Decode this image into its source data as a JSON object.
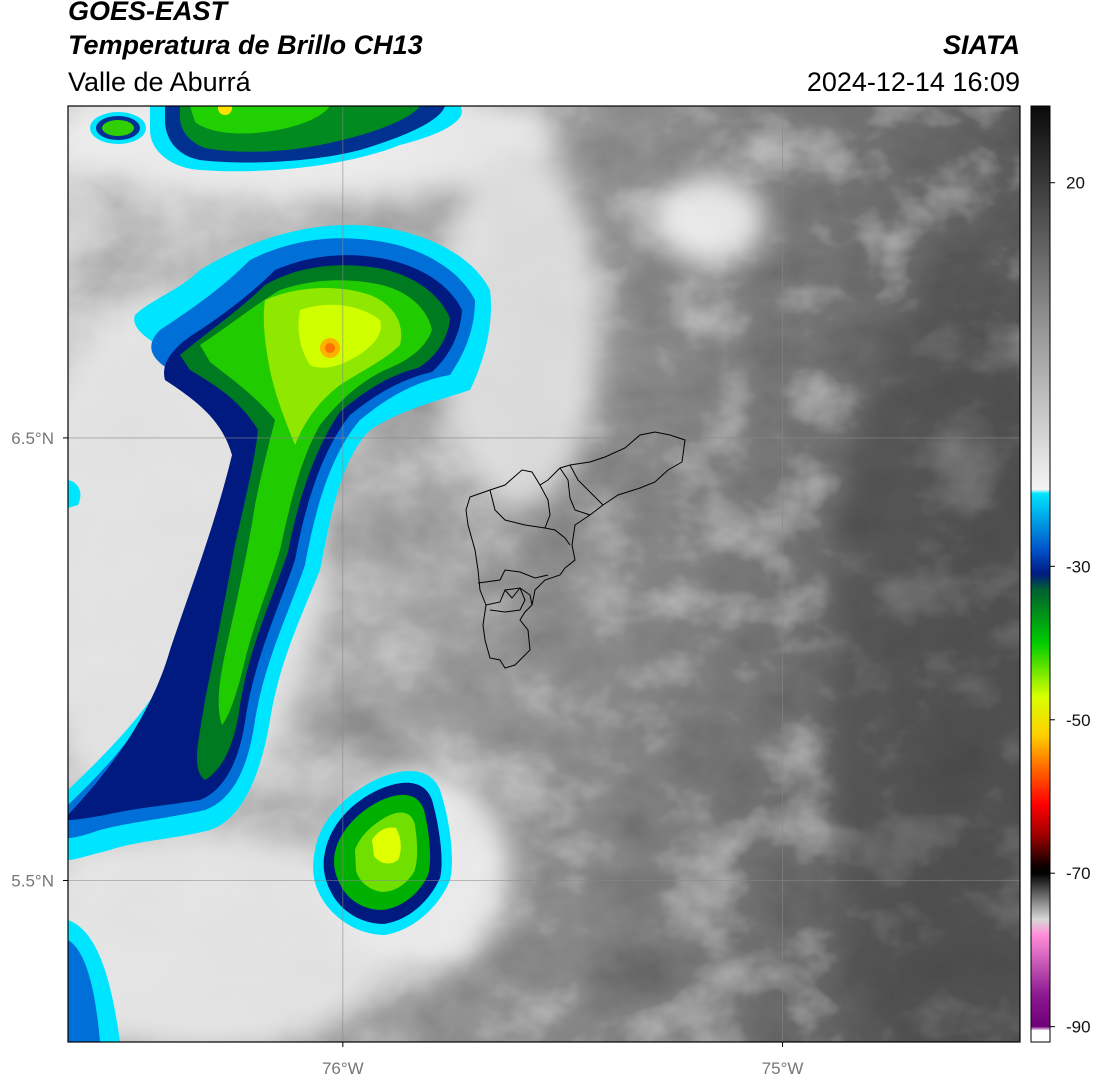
{
  "header": {
    "source": "GOES-EAST",
    "product": "Temperatura de Brillo CH13",
    "region": "Valle de Aburrá",
    "organization": "SIATA",
    "timestamp": "2024-12-14 16:09"
  },
  "map": {
    "lat_ticks": [
      {
        "value": 6.5,
        "label": "6.5°N"
      },
      {
        "value": 5.5,
        "label": "5.5°N"
      }
    ],
    "lon_ticks": [
      {
        "value": -76,
        "label": "76°W"
      },
      {
        "value": -75,
        "label": "75°W"
      }
    ],
    "lon_range": [
      -76.625,
      -74.46
    ],
    "lat_range": [
      5.135,
      7.25
    ],
    "grid": true,
    "boundary_color": "#000000"
  },
  "colorbar": {
    "range": [
      -92,
      30
    ],
    "tick_labels": [
      {
        "value": 20,
        "label": "20"
      },
      {
        "value": -30,
        "label": "-30"
      },
      {
        "value": -50,
        "label": "-50"
      },
      {
        "value": -70,
        "label": "-70"
      },
      {
        "value": -90,
        "label": "-90"
      }
    ],
    "stops": [
      {
        "value": 30,
        "color": "#0a0a0a"
      },
      {
        "value": 0,
        "color": "#9a9a9a"
      },
      {
        "value": -20,
        "color": "#f4f4f4"
      },
      {
        "value": -20.5,
        "color": "#00e5ff"
      },
      {
        "value": -28,
        "color": "#0050c8"
      },
      {
        "value": -31,
        "color": "#001a80"
      },
      {
        "value": -33,
        "color": "#006030"
      },
      {
        "value": -40,
        "color": "#00cc00"
      },
      {
        "value": -47,
        "color": "#d8ff00"
      },
      {
        "value": -52,
        "color": "#ffd000"
      },
      {
        "value": -56,
        "color": "#ff7000"
      },
      {
        "value": -61,
        "color": "#ff0000"
      },
      {
        "value": -65,
        "color": "#a00000"
      },
      {
        "value": -69,
        "color": "#100000"
      },
      {
        "value": -70,
        "color": "#000000"
      },
      {
        "value": -76,
        "color": "#d8d8d8"
      },
      {
        "value": -78,
        "color": "#ff90d8"
      },
      {
        "value": -86,
        "color": "#8a1890"
      },
      {
        "value": -90,
        "color": "#700078"
      },
      {
        "value": -90.5,
        "color": "#ffffff"
      }
    ]
  }
}
